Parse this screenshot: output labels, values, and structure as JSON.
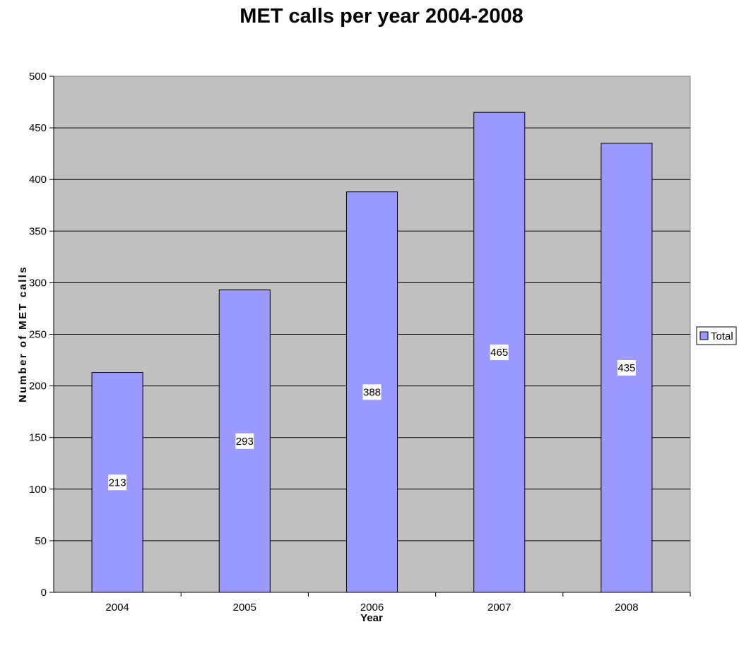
{
  "chart_data": {
    "type": "bar",
    "title": "MET calls per year 2004-2008",
    "xlabel": "Year",
    "ylabel": "Number of MET calls",
    "categories": [
      "2004",
      "2005",
      "2006",
      "2007",
      "2008"
    ],
    "series": [
      {
        "name": "Total",
        "values": [
          213,
          293,
          388,
          465,
          435
        ]
      }
    ],
    "data_labels": [
      "213",
      "293",
      "388",
      "465",
      "435"
    ],
    "ylim": [
      0,
      500
    ],
    "yticks": [
      "0",
      "50",
      "100",
      "150",
      "200",
      "250",
      "300",
      "350",
      "400",
      "450",
      "500"
    ],
    "grid": true,
    "legend": "right",
    "colors": {
      "bar": "#9999ff",
      "plot_bg": "#c0c0c0",
      "bar_stroke": "#000000"
    }
  }
}
